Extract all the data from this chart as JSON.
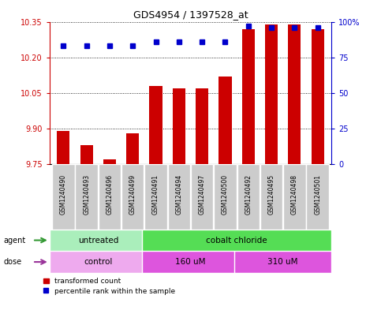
{
  "title": "GDS4954 / 1397528_at",
  "samples": [
    "GSM1240490",
    "GSM1240493",
    "GSM1240496",
    "GSM1240499",
    "GSM1240491",
    "GSM1240494",
    "GSM1240497",
    "GSM1240500",
    "GSM1240492",
    "GSM1240495",
    "GSM1240498",
    "GSM1240501"
  ],
  "transformed_count": [
    9.89,
    9.83,
    9.77,
    9.88,
    10.08,
    10.07,
    10.07,
    10.12,
    10.32,
    10.34,
    10.34,
    10.32
  ],
  "percentile_rank": [
    83,
    83,
    83,
    83,
    86,
    86,
    86,
    86,
    97,
    96,
    96,
    96
  ],
  "bar_color": "#cc0000",
  "dot_color": "#0000cc",
  "ylim_left": [
    9.75,
    10.35
  ],
  "ylim_right": [
    0,
    100
  ],
  "yticks_left": [
    9.75,
    9.9,
    10.05,
    10.2,
    10.35
  ],
  "yticks_right": [
    0,
    25,
    50,
    75,
    100
  ],
  "ytick_labels_right": [
    "0",
    "25",
    "50",
    "75",
    "100%"
  ],
  "agent_groups": [
    {
      "label": "untreated",
      "start": 0,
      "end": 4,
      "color": "#aaeebb"
    },
    {
      "label": "cobalt chloride",
      "start": 4,
      "end": 12,
      "color": "#55dd55"
    }
  ],
  "dose_groups": [
    {
      "label": "control",
      "start": 0,
      "end": 4,
      "color": "#eeaaee"
    },
    {
      "label": "160 uM",
      "start": 4,
      "end": 8,
      "color": "#dd55dd"
    },
    {
      "label": "310 uM",
      "start": 8,
      "end": 12,
      "color": "#dd55dd"
    }
  ],
  "legend_bar_label": "transformed count",
  "legend_dot_label": "percentile rank within the sample",
  "bar_color_legend": "#cc0000",
  "dot_color_legend": "#0000cc",
  "bar_width": 0.55,
  "baseline": 9.75,
  "agent_label": "agent",
  "dose_label": "dose",
  "agent_arrow_color": "#339933",
  "dose_arrow_color": "#993399",
  "label_tick_color": "#cc0000",
  "right_tick_color": "#0000cc"
}
